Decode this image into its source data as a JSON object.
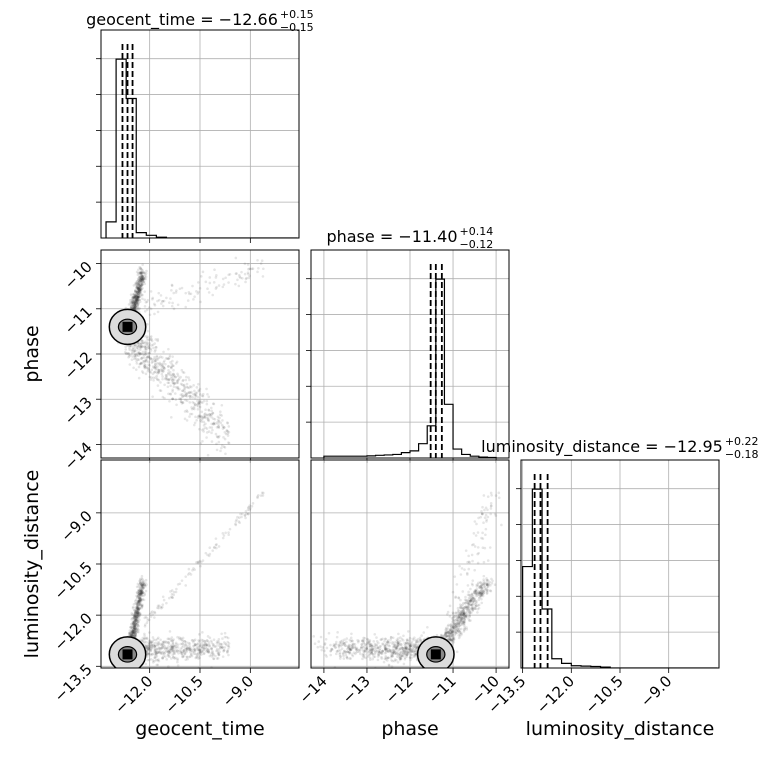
{
  "chart_data": {
    "type": "corner",
    "parameters": [
      {
        "key": "geocent_time",
        "label": "geocent_time",
        "range": [
          -13.45,
          -7.55
        ],
        "ticks": [
          -12.0,
          -10.5,
          -9.0
        ],
        "tick_labels": [
          "−12.0",
          "−10.5",
          "−9.0"
        ]
      },
      {
        "key": "phase",
        "label": "phase",
        "range": [
          -14.3,
          -9.7
        ],
        "ticks": [
          -14,
          -13,
          -12,
          -11,
          -10
        ],
        "tick_labels": [
          "−14",
          "−13",
          "−12",
          "−11",
          "−10"
        ]
      },
      {
        "key": "luminosity_distance",
        "label": "luminosity_distance",
        "range": [
          -13.55,
          -7.45
        ],
        "ticks": [
          -13.5,
          -12.0,
          -10.5,
          -9.0
        ],
        "tick_labels": [
          "−13.5",
          "−12.0",
          "−10.5",
          "−9.0"
        ]
      }
    ],
    "titles": [
      {
        "name": "geocent_time",
        "text": "geocent_time = −12.66",
        "sup": "+0.15",
        "sub": "−0.15"
      },
      {
        "name": "phase",
        "text": "phase = −11.40",
        "sup": "+0.14",
        "sub": "−0.12"
      },
      {
        "name": "luminosity_distance",
        "text": "luminosity_distance = −12.95",
        "sup": "+0.22",
        "sub": "−0.18"
      }
    ],
    "diagonal": [
      {
        "param": "geocent_time",
        "bin_width": 0.3,
        "bin_start": -13.3,
        "counts": [
          0.09,
          1.0,
          0.78,
          0.03,
          0.015,
          0.004,
          0,
          0,
          0,
          0,
          0,
          0,
          0,
          0,
          0,
          0,
          0,
          0,
          0
        ],
        "quantiles": [
          -12.81,
          -12.66,
          -12.51
        ]
      },
      {
        "param": "phase",
        "bin_width": 0.2,
        "bin_start": -14.0,
        "counts": [
          0.01,
          0.01,
          0.01,
          0.01,
          0.01,
          0.012,
          0.015,
          0.017,
          0.02,
          0.03,
          0.04,
          0.08,
          0.18,
          1.0,
          0.3,
          0.05,
          0.02,
          0.01,
          0.005,
          0.003
        ],
        "quantiles": [
          -11.52,
          -11.4,
          -11.26
        ]
      },
      {
        "param": "luminosity_distance",
        "bin_width": 0.3,
        "bin_start": -13.5,
        "counts": [
          0.55,
          0.97,
          0.32,
          0.05,
          0.025,
          0.012,
          0.01,
          0.008,
          0.005,
          0,
          0,
          0,
          0,
          0,
          0,
          0,
          0,
          0,
          0,
          0
        ],
        "quantiles": [
          -13.13,
          -12.95,
          -12.73
        ]
      }
    ],
    "grid": true,
    "contour_levels": 2
  }
}
